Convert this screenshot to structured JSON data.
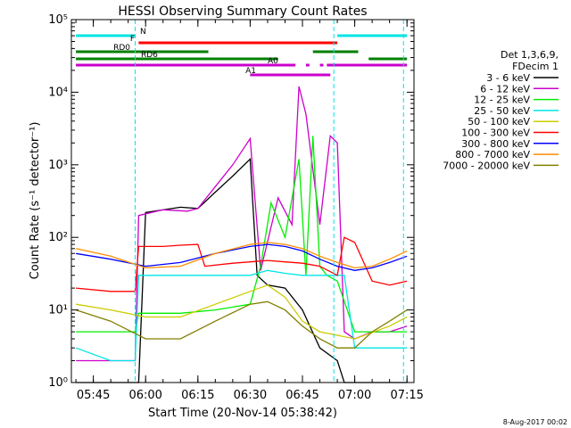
{
  "chart_data": {
    "type": "line",
    "title": "HESSI Observing Summary Count Rates",
    "xlabel": "Start Time (20-Nov-14 05:38:42)",
    "ylabel": "Count Rate (s⁻¹ detector⁻¹)",
    "y_scale": "log",
    "ylim": [
      1,
      100000
    ],
    "xlim": [
      "05:38:42",
      "07:17:00"
    ],
    "x_ticks": [
      "05:45",
      "06:00",
      "06:15",
      "06:30",
      "06:45",
      "07:00",
      "07:15"
    ],
    "y_ticks": [
      "10⁰",
      "10¹",
      "10²",
      "10³",
      "10⁴",
      "10⁵"
    ],
    "grid": false,
    "legend_position": "right",
    "legend_header": [
      "Det 1,3,6,9,",
      "FDecim 1"
    ],
    "date_stamp": "8-Aug-2017 00:02",
    "series": [
      {
        "name": "3 - 6 keV",
        "color": "#000000",
        "x": [
          "05:40",
          "05:50",
          "05:58",
          "06:00",
          "06:10",
          "06:15",
          "06:20",
          "06:25",
          "06:30",
          "06:32",
          "06:35",
          "06:40",
          "06:45",
          "06:50",
          "06:55",
          "06:57",
          "07:00",
          "07:05",
          "07:10",
          "07:15"
        ],
        "y": [
          1,
          1,
          1,
          220,
          260,
          250,
          420,
          700,
          1200,
          30,
          22,
          20,
          10,
          3,
          2,
          1,
          1,
          1,
          1,
          1
        ]
      },
      {
        "name": "6 - 12 keV",
        "color": "#cc00cc",
        "x": [
          "05:40",
          "05:50",
          "05:57",
          "05:58",
          "06:05",
          "06:12",
          "06:15",
          "06:20",
          "06:25",
          "06:30",
          "06:33",
          "06:38",
          "06:42",
          "06:44",
          "06:46",
          "06:50",
          "06:53",
          "06:55",
          "06:57",
          "07:00",
          "07:05",
          "07:10",
          "07:15"
        ],
        "y": [
          2,
          2,
          2,
          200,
          240,
          230,
          250,
          500,
          1000,
          2300,
          35,
          350,
          150,
          12000,
          5000,
          150,
          2500,
          2000,
          5,
          4,
          5,
          5,
          6
        ]
      },
      {
        "name": "12 - 25 keV",
        "color": "#00ee00",
        "x": [
          "05:40",
          "05:50",
          "05:57",
          "05:58",
          "06:10",
          "06:20",
          "06:30",
          "06:33",
          "06:36",
          "06:40",
          "06:44",
          "06:46",
          "06:48",
          "06:50",
          "06:52",
          "06:55",
          "07:00",
          "07:05",
          "07:10",
          "07:15"
        ],
        "y": [
          5,
          5,
          5,
          9,
          9,
          10,
          12,
          40,
          300,
          100,
          1200,
          30,
          2500,
          40,
          30,
          25,
          5,
          5,
          5,
          5
        ]
      },
      {
        "name": "25 - 50 keV",
        "color": "#00e5e5",
        "x": [
          "05:40",
          "05:50",
          "05:57",
          "05:58",
          "06:10",
          "06:20",
          "06:30",
          "06:35",
          "06:40",
          "06:45",
          "06:50",
          "06:55",
          "06:57",
          "07:00",
          "07:10",
          "07:15"
        ],
        "y": [
          3,
          2,
          2,
          30,
          30,
          30,
          30,
          35,
          32,
          30,
          30,
          30,
          30,
          3,
          3,
          3
        ]
      },
      {
        "name": "50 - 100 keV",
        "color": "#cccc00",
        "x": [
          "05:40",
          "05:50",
          "06:00",
          "06:10",
          "06:20",
          "06:30",
          "06:35",
          "06:40",
          "06:45",
          "06:50",
          "07:00",
          "07:10",
          "07:15"
        ],
        "y": [
          12,
          10,
          8,
          8,
          12,
          18,
          22,
          15,
          7,
          5,
          4,
          6,
          8
        ]
      },
      {
        "name": "100 - 300 keV",
        "color": "#ff0000",
        "x": [
          "05:40",
          "05:50",
          "05:57",
          "05:58",
          "06:05",
          "06:10",
          "06:15",
          "06:17",
          "06:25",
          "06:30",
          "06:35",
          "06:40",
          "06:45",
          "06:50",
          "06:55",
          "06:57",
          "07:00",
          "07:05",
          "07:10",
          "07:15"
        ],
        "y": [
          20,
          18,
          18,
          75,
          75,
          78,
          80,
          40,
          44,
          46,
          48,
          46,
          44,
          40,
          30,
          100,
          85,
          25,
          22,
          25
        ]
      },
      {
        "name": "300 - 800 keV",
        "color": "#0000ff",
        "x": [
          "05:40",
          "05:50",
          "06:00",
          "06:10",
          "06:20",
          "06:30",
          "06:35",
          "06:40",
          "06:45",
          "06:50",
          "06:55",
          "07:00",
          "07:05",
          "07:10",
          "07:15"
        ],
        "y": [
          60,
          50,
          40,
          45,
          60,
          75,
          80,
          75,
          65,
          50,
          40,
          35,
          38,
          45,
          55
        ]
      },
      {
        "name": "800 - 7000 keV",
        "color": "#ff8c00",
        "x": [
          "05:40",
          "05:50",
          "06:00",
          "06:10",
          "06:20",
          "06:30",
          "06:35",
          "06:40",
          "06:45",
          "06:50",
          "06:55",
          "07:00",
          "07:05",
          "07:10",
          "07:15"
        ],
        "y": [
          70,
          55,
          38,
          40,
          60,
          80,
          85,
          80,
          70,
          55,
          45,
          38,
          40,
          50,
          65
        ]
      },
      {
        "name": "7000 - 20000 keV",
        "color": "#808000",
        "x": [
          "05:40",
          "05:50",
          "06:00",
          "06:10",
          "06:20",
          "06:30",
          "06:35",
          "06:40",
          "06:45",
          "06:50",
          "06:55",
          "07:00",
          "07:05",
          "07:10",
          "07:15"
        ],
        "y": [
          10,
          7,
          4,
          4,
          7,
          12,
          13,
          10,
          6,
          4,
          3,
          3,
          5,
          7,
          10
        ]
      }
    ],
    "flag_bars": [
      {
        "label": "N",
        "color": "#00e5e5",
        "segments": [
          [
            "05:40",
            "05:57"
          ],
          [
            "06:55",
            "07:15"
          ]
        ]
      },
      {
        "label": "F",
        "color": "#ff0000",
        "segments": [
          [
            "05:58",
            "06:55"
          ]
        ]
      },
      {
        "label": "RD0",
        "color": "#008000",
        "segments": [
          [
            "05:40",
            "06:18"
          ],
          [
            "06:48",
            "07:01"
          ]
        ]
      },
      {
        "label": "RD6",
        "color": "#008000",
        "segments": [
          [
            "05:40",
            "06:38"
          ],
          [
            "07:04",
            "07:15"
          ]
        ]
      },
      {
        "label": "A0",
        "color": "#cc00cc",
        "segments": [
          [
            "05:40",
            "06:43"
          ],
          [
            "06:46",
            "06:47"
          ],
          [
            "06:50",
            "06:51"
          ],
          [
            "06:52",
            "07:15"
          ]
        ]
      },
      {
        "label": "A1",
        "color": "#cc00cc",
        "segments": [
          [
            "06:30",
            "06:53"
          ]
        ]
      }
    ],
    "vlines": [
      "05:57",
      "06:54",
      "07:14"
    ]
  }
}
